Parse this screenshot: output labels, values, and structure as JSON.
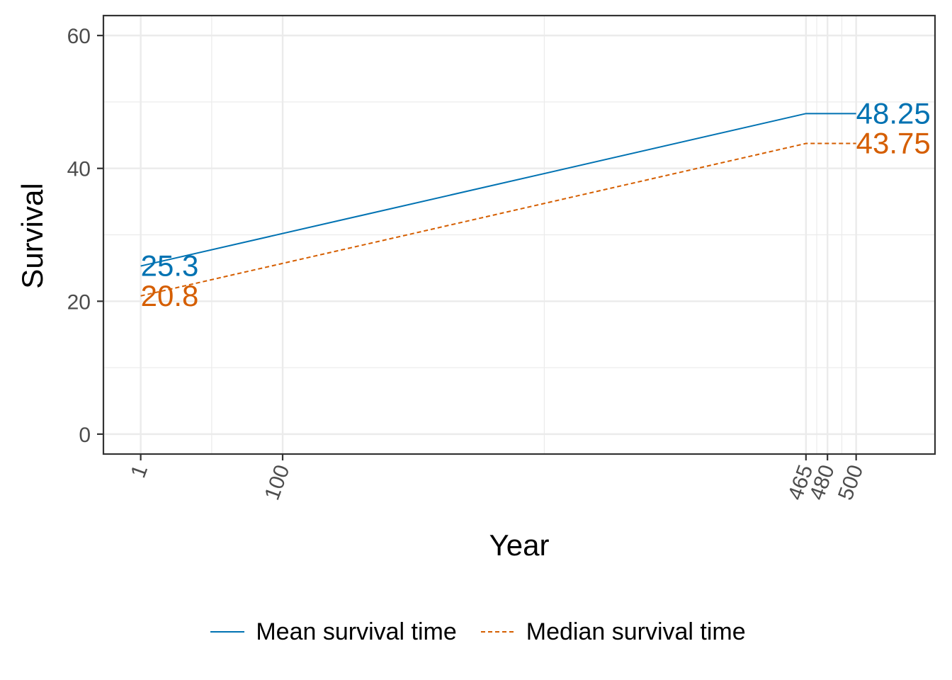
{
  "chart_data": {
    "type": "line",
    "title": "",
    "xlabel": "Year",
    "ylabel": "Survival",
    "x_breaks": [
      1,
      100,
      465,
      480,
      500
    ],
    "y_breaks": [
      0,
      20,
      40,
      60
    ],
    "xlim": [
      -25,
      555
    ],
    "ylim": [
      -3,
      63
    ],
    "grid": true,
    "legend_position": "bottom",
    "series": [
      {
        "name": "Mean survival time",
        "color": "#0072B2",
        "linetype": "solid",
        "points": [
          [
            1,
            25.3
          ],
          [
            465,
            48.25
          ],
          [
            500,
            48.25
          ]
        ],
        "labels": [
          {
            "x": 1,
            "y": 25.3,
            "text": "25.3"
          },
          {
            "x": 500,
            "y": 48.25,
            "text": "48.25"
          }
        ]
      },
      {
        "name": "Median survival time",
        "color": "#D55E00",
        "linetype": "dashed",
        "points": [
          [
            1,
            20.8
          ],
          [
            465,
            43.75
          ],
          [
            500,
            43.75
          ]
        ],
        "labels": [
          {
            "x": 1,
            "y": 20.8,
            "text": "20.8"
          },
          {
            "x": 500,
            "y": 43.75,
            "text": "43.75"
          }
        ]
      }
    ]
  }
}
